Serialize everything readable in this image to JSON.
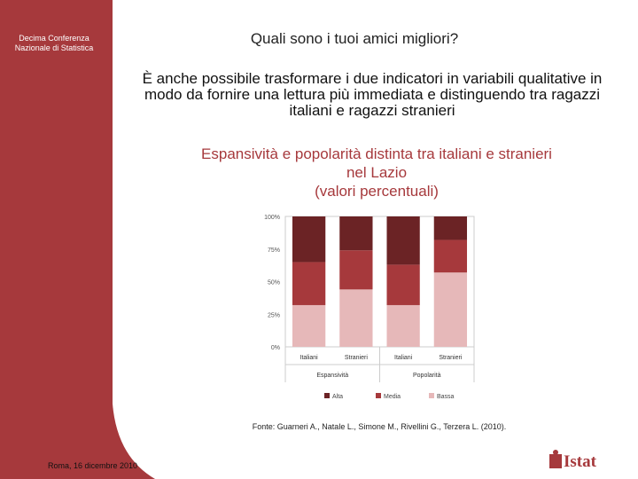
{
  "sidebar": {
    "conference": "Decima Conferenza Nazionale di Statistica"
  },
  "slide": {
    "title": "Quali sono i tuoi amici migliori?",
    "intro": "È anche possibile trasformare i due indicatori in variabili qualitative in modo da fornire una lettura più immediata e distinguendo tra ragazzi italiani e ragazzi stranieri",
    "chart_heading_line1": "Espansività e popolarità distinta tra italiani e stranieri",
    "chart_heading_line2": "nel Lazio",
    "chart_heading_line3": "(valori percentuali)"
  },
  "footer": {
    "source": "Fonte: Guarneri A., Natale L., Simone M., Rivellini G., Terzera L. (2010).",
    "date": "Roma, 16 dicembre 2010",
    "logo_text": "Istat"
  },
  "colors": {
    "alta": "#6b2325",
    "media": "#a6393c",
    "bassa": "#e6b8b9",
    "brand": "#a6393c"
  },
  "chart_data": {
    "type": "bar",
    "stacked": true,
    "categories": [
      "Italiani",
      "Stranieri",
      "Italiani",
      "Stranieri"
    ],
    "groups": [
      {
        "label": "Espansività",
        "categories": [
          0,
          1
        ]
      },
      {
        "label": "Popolarità",
        "categories": [
          2,
          3
        ]
      }
    ],
    "series": [
      {
        "name": "Bassa",
        "values": [
          32,
          44,
          32,
          57
        ]
      },
      {
        "name": "Media",
        "values": [
          33,
          30,
          31,
          25
        ]
      },
      {
        "name": "Alta",
        "values": [
          35,
          26,
          37,
          18
        ]
      }
    ],
    "yticks": [
      "0%",
      "25%",
      "50%",
      "75%",
      "100%"
    ],
    "ylim": [
      0,
      100
    ],
    "legend": [
      "Alta",
      "Media",
      "Bassa"
    ],
    "legend_position": "bottom"
  }
}
